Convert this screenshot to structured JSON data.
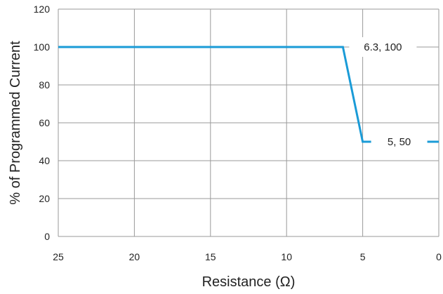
{
  "chart_data": {
    "type": "line",
    "xlabel": "Resistance (Ω)",
    "ylabel": "% of Programmed Current",
    "xlim": [
      25,
      0
    ],
    "ylim": [
      0,
      120
    ],
    "x_ticks": [
      "25",
      "20",
      "15",
      "10",
      "5",
      "0"
    ],
    "y_ticks": [
      "0",
      "20",
      "40",
      "60",
      "80",
      "100",
      "120"
    ],
    "grid": true,
    "line_color": "#1a9bd7",
    "series": [
      {
        "x": [
          25,
          6.3,
          5,
          0
        ],
        "y": [
          100,
          100,
          50,
          50
        ]
      }
    ],
    "annotations": [
      {
        "text": "6.3, 100",
        "x": 6.3,
        "y": 100
      },
      {
        "text": "5, 50",
        "x": 5,
        "y": 50
      }
    ]
  }
}
